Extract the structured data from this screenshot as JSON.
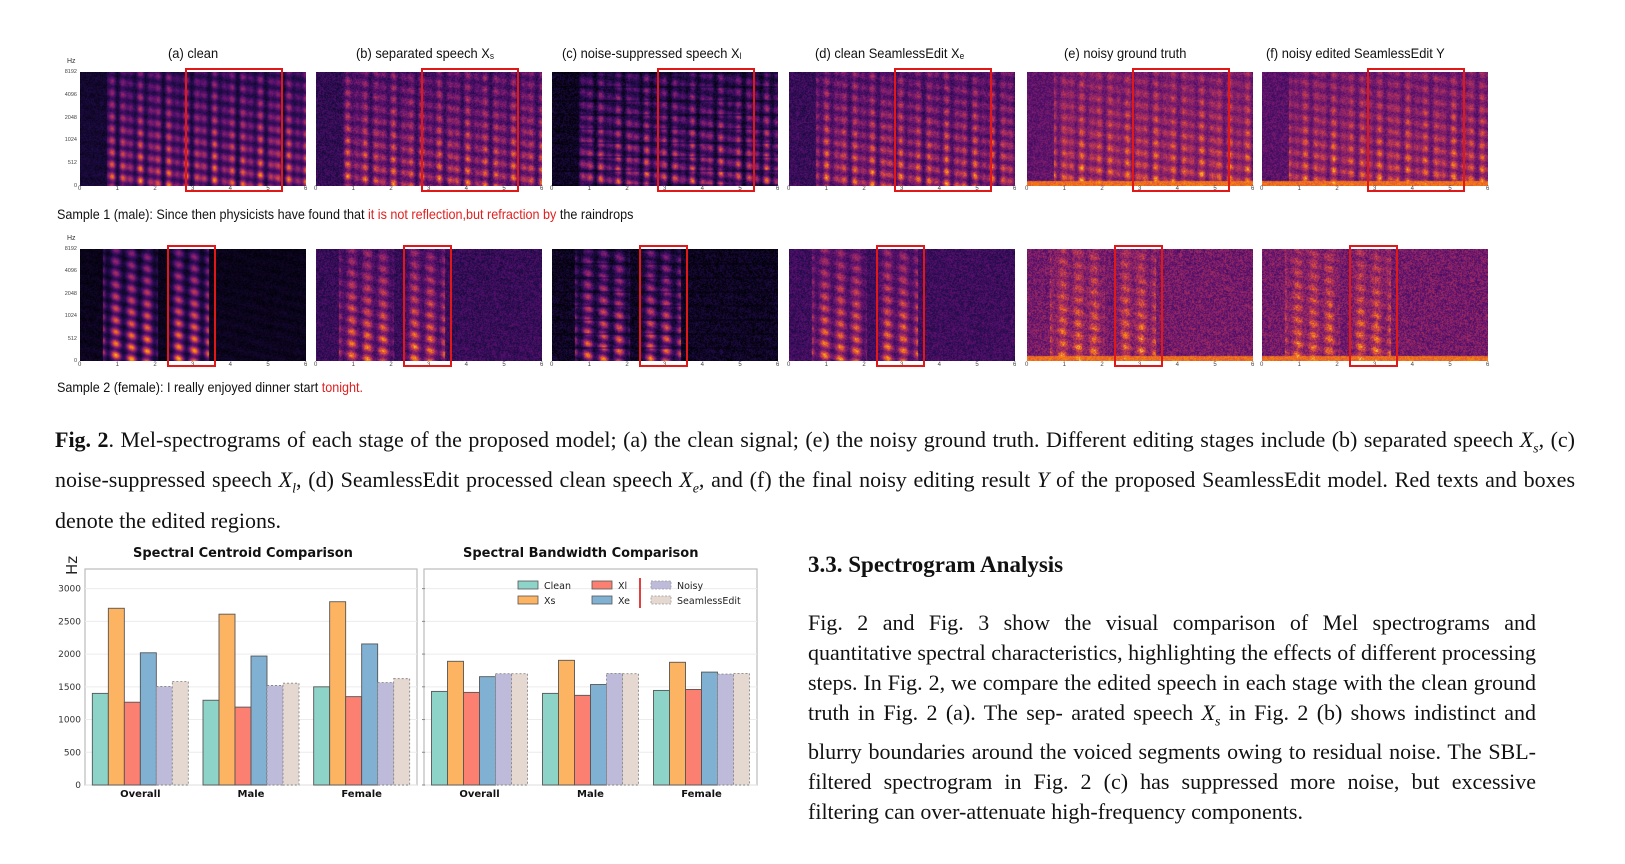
{
  "figure2": {
    "panels": [
      {
        "label": "(a) clean",
        "sub": ""
      },
      {
        "label": "(b) separated speech X",
        "sub": "s"
      },
      {
        "label": "(c) noise-suppressed speech X",
        "sub": "l"
      },
      {
        "label": "(d) clean SeamlessEdit X",
        "sub": "e"
      },
      {
        "label": "(e) noisy ground truth",
        "sub": ""
      },
      {
        "label": "(f) noisy edited SeamlessEdit Y",
        "sub": ""
      }
    ],
    "y_axis_unit": "Hz",
    "y_ticks": [
      "8192",
      "4096",
      "2048",
      "1024",
      "512",
      "0"
    ],
    "x_ticks": [
      "0",
      "1",
      "2",
      "3",
      "4",
      "5",
      "6"
    ],
    "samples": [
      {
        "prefix": "Sample 1 (male): Since then physicists have found that ",
        "edited": "it is not reflection,but refraction by",
        "suffix": " the raindrops",
        "edit_region_seconds": [
          2.8,
          5.4
        ]
      },
      {
        "prefix": "Sample 2 (female): I really enjoyed dinner start ",
        "edited": "tonight.",
        "suffix": "",
        "edit_region_seconds": [
          2.3,
          3.6
        ]
      }
    ],
    "caption": {
      "label": "Fig. 2",
      "line1": ". Mel-spectrograms of each stage of the proposed model; (a) the clean signal; (e) the noisy ground truth. Different editing stages include",
      "line2_a": "(b) separated speech ",
      "xs": "X",
      "xs_sub": "s",
      "line2_b": ", (c) noise-suppressed speech ",
      "xl": "X",
      "xl_sub": "l",
      "line2_c": ", (d) SeamlessEdit processed clean speech ",
      "xe": "X",
      "xe_sub": "e",
      "line2_d": ", and (f) the final noisy editing result",
      "y": "Y",
      "line3": " of the proposed SeamlessEdit model. Red texts and boxes denote the edited regions."
    }
  },
  "section": {
    "heading": "3.3.  Spectrogram Analysis",
    "p1": "Fig. 2 and Fig. 3 show the visual comparison of Mel spectrograms and quantitative spectral characteristics, highlighting the effects of different processing steps. In Fig. 2, we compare the edited speech in each stage with the clean ground truth in Fig. 2 (a). The sep-",
    "p2_a": "arated speech ",
    "p2_x": "X",
    "p2_sub": "s",
    "p2_b": " in Fig. 2 (b) shows indistinct and blurry boundaries around the voiced segments owing to residual noise. The SBL-filtered spectrogram in Fig. 2 (c) has suppressed more noise, but excessive filtering can over-attenuate high-frequency components."
  },
  "colors": {
    "Clean": "#8dd3c7",
    "Xs": "#fdb462",
    "Xl": "#fb8072",
    "Xe": "#80b1d3",
    "Noisy": "#bebada",
    "SeamlessEdit": "#e5d8d0",
    "edit_red": "#e01818"
  },
  "chart_data": [
    {
      "type": "bar",
      "title": "Spectral Centroid Comparison",
      "ylabel": "Hz",
      "xlabel": "",
      "categories": [
        "Overall",
        "Male",
        "Female"
      ],
      "ylim": [
        0,
        3300
      ],
      "yticks": [
        0,
        500,
        1000,
        1500,
        2000,
        2500,
        3000
      ],
      "grid": true,
      "series": [
        {
          "name": "Clean",
          "values": [
            1400,
            1295,
            1500
          ]
        },
        {
          "name": "Xs",
          "values": [
            2700,
            2610,
            2800
          ]
        },
        {
          "name": "Xl",
          "values": [
            1265,
            1190,
            1350
          ]
        },
        {
          "name": "Xe",
          "values": [
            2020,
            1970,
            2155
          ]
        },
        {
          "name": "Noisy",
          "values": [
            1505,
            1520,
            1565
          ],
          "dashed": true
        },
        {
          "name": "SeamlessEdit",
          "values": [
            1580,
            1555,
            1625
          ],
          "dashed": true
        }
      ]
    },
    {
      "type": "bar",
      "title": "Spectral Bandwidth Comparison",
      "ylabel": "",
      "xlabel": "",
      "categories": [
        "Overall",
        "Male",
        "Female"
      ],
      "ylim": [
        0,
        3300
      ],
      "yticks": [
        0,
        500,
        1000,
        1500,
        2000,
        2500,
        3000
      ],
      "grid": true,
      "legend": {
        "position": "top-right",
        "entries": [
          "Clean",
          "Xs",
          "Xl",
          "Xe",
          "Noisy",
          "SeamlessEdit"
        ],
        "labels": [
          "Clean",
          "Xs",
          "Xl",
          "Xe",
          "Noisy",
          "SeamlessEdit"
        ]
      },
      "series": [
        {
          "name": "Clean",
          "values": [
            1430,
            1400,
            1445
          ]
        },
        {
          "name": "Xs",
          "values": [
            1890,
            1905,
            1875
          ]
        },
        {
          "name": "Xl",
          "values": [
            1415,
            1370,
            1460
          ]
        },
        {
          "name": "Xe",
          "values": [
            1655,
            1535,
            1725
          ]
        },
        {
          "name": "Noisy",
          "values": [
            1700,
            1705,
            1695
          ],
          "dashed": true
        },
        {
          "name": "SeamlessEdit",
          "values": [
            1700,
            1700,
            1705
          ],
          "dashed": true
        }
      ]
    }
  ]
}
